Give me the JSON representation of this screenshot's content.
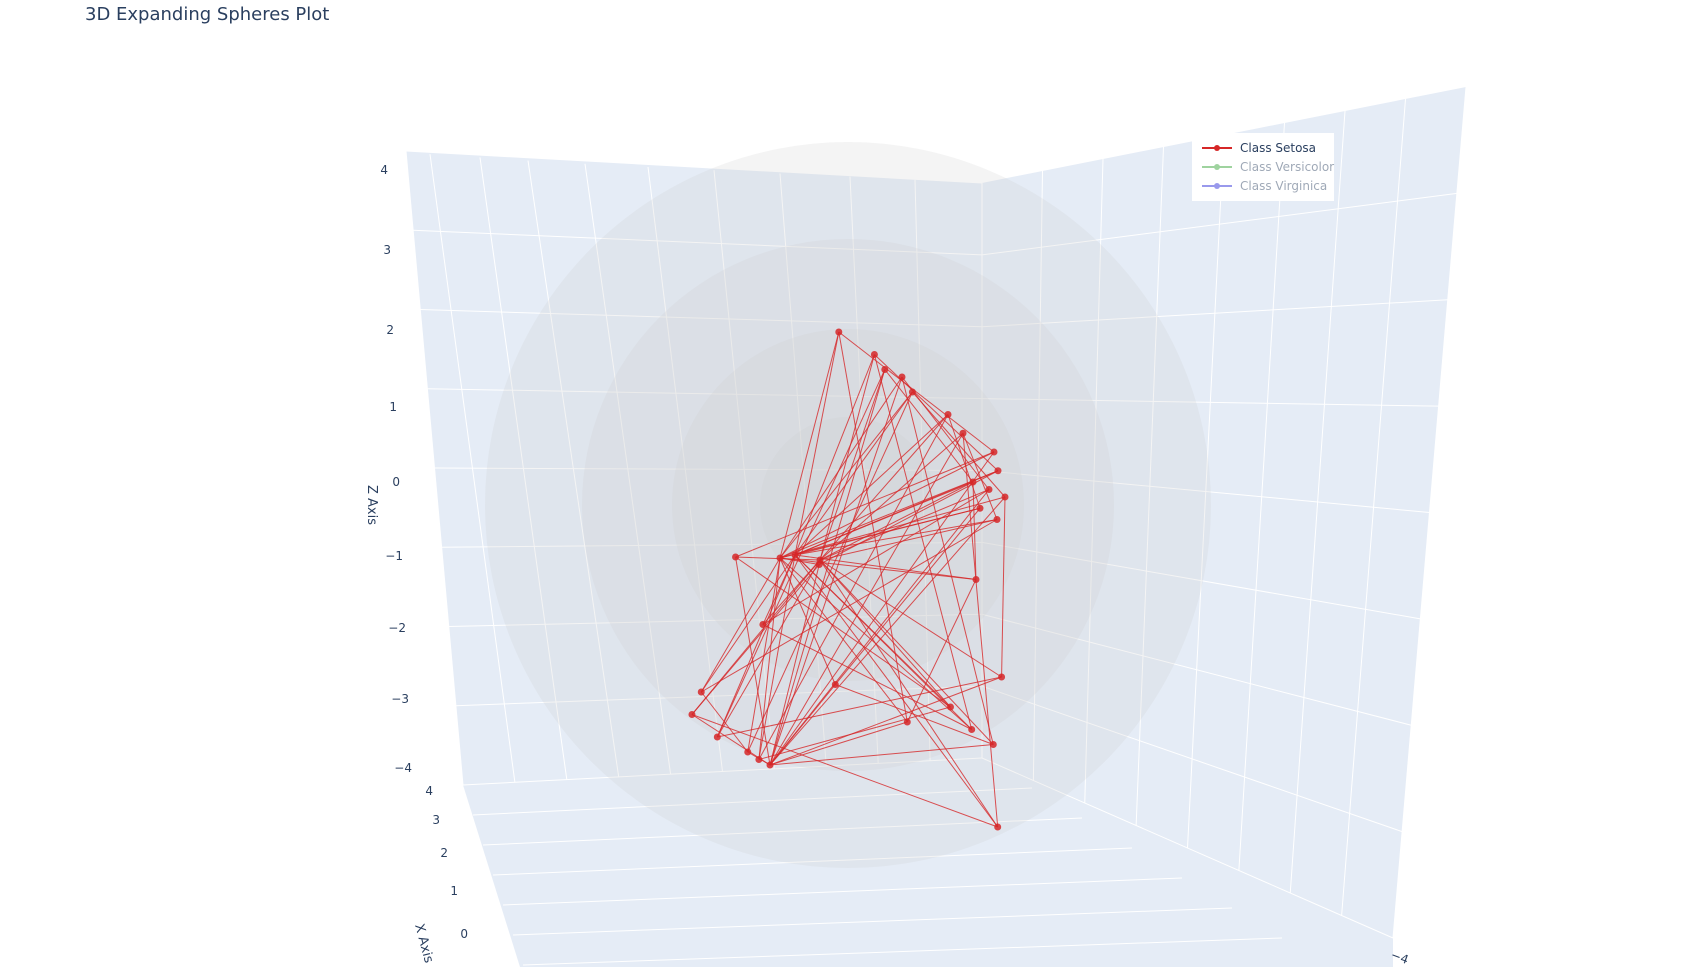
{
  "chart_data": {
    "type": "scatter3d",
    "title": "3D Expanding Spheres Plot",
    "axes": {
      "x": {
        "title": "X Axis",
        "ticks": [
          "4",
          "3",
          "2",
          "1",
          "0"
        ]
      },
      "y": {
        "ticks": [
          "−4"
        ]
      },
      "z": {
        "title": "Z Axis",
        "ticks": [
          "4",
          "3",
          "2",
          "1",
          "0",
          "−1",
          "−2",
          "−3",
          "−4"
        ]
      }
    },
    "spheres": {
      "count": 4,
      "color": "#cccccc"
    },
    "legend": {
      "position": "top-right",
      "entries": [
        {
          "name": "Class Setosa",
          "color": "#d62728",
          "visible": true
        },
        {
          "name": "Class Versicolor",
          "color": "#2ca02c",
          "visible": false
        },
        {
          "name": "Class Virginica",
          "color": "#1f1fd6",
          "visible": false
        }
      ]
    },
    "series": [
      {
        "name": "Class Setosa",
        "color": "#d62728",
        "z_values": [
          2.0,
          1.7,
          1.5,
          1.4,
          1.2,
          0.9,
          0.65,
          0.4,
          0.15,
          0.0,
          -0.1,
          -0.2,
          -0.35,
          -0.5,
          -1.0,
          -1.1,
          -1.3,
          -1.9,
          -2.6,
          -2.7,
          -2.8,
          -3.0,
          -3.1,
          -3.2,
          -3.3,
          -3.4,
          -3.5,
          -3.6,
          -3.7,
          -4.6
        ]
      }
    ]
  }
}
